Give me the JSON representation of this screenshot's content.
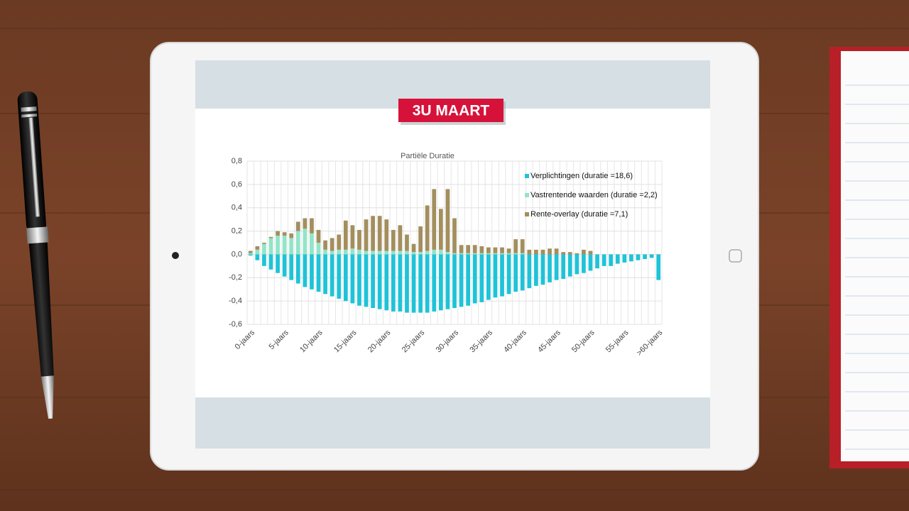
{
  "badge": {
    "text": "3U MAART"
  },
  "chart_data": {
    "type": "bar",
    "stacked": true,
    "title": "Partiële Duratie",
    "categories": [
      "0-jaars",
      null,
      null,
      null,
      null,
      "5-jaars",
      null,
      null,
      null,
      null,
      "10-jaars",
      null,
      null,
      null,
      null,
      "15-jaars",
      null,
      null,
      null,
      null,
      "20-jaars",
      null,
      null,
      null,
      null,
      "25-jaars",
      null,
      null,
      null,
      null,
      "30-jaars",
      null,
      null,
      null,
      null,
      "35-jaars",
      null,
      null,
      null,
      null,
      "40-jaars",
      null,
      null,
      null,
      null,
      "45-jaars",
      null,
      null,
      null,
      null,
      "50-jaars",
      null,
      null,
      null,
      null,
      "55-jaars",
      null,
      null,
      null,
      null,
      ">60-jaars"
    ],
    "series": [
      {
        "name": "Verplichtingen (duratie =18,6)",
        "color": "#1fc3d8",
        "values": [
          -0.01,
          -0.05,
          -0.1,
          -0.13,
          -0.16,
          -0.19,
          -0.22,
          -0.25,
          -0.28,
          -0.3,
          -0.32,
          -0.34,
          -0.36,
          -0.38,
          -0.4,
          -0.42,
          -0.44,
          -0.45,
          -0.46,
          -0.47,
          -0.48,
          -0.49,
          -0.49,
          -0.5,
          -0.5,
          -0.5,
          -0.5,
          -0.49,
          -0.48,
          -0.47,
          -0.46,
          -0.45,
          -0.44,
          -0.42,
          -0.41,
          -0.39,
          -0.37,
          -0.36,
          -0.34,
          -0.32,
          -0.31,
          -0.29,
          -0.27,
          -0.26,
          -0.24,
          -0.22,
          -0.21,
          -0.19,
          -0.17,
          -0.16,
          -0.14,
          -0.12,
          -0.1,
          -0.1,
          -0.08,
          -0.07,
          -0.06,
          -0.05,
          -0.04,
          -0.03,
          -0.22
        ]
      },
      {
        "name": "Vastrentende waarden (duratie =2,2)",
        "color": "#93e4c8",
        "values": [
          0.01,
          0.04,
          0.09,
          0.14,
          0.16,
          0.16,
          0.14,
          0.2,
          0.22,
          0.18,
          0.1,
          0.04,
          0.03,
          0.04,
          0.04,
          0.05,
          0.04,
          0.03,
          0.03,
          0.03,
          0.03,
          0.03,
          0.03,
          0.03,
          0.02,
          0.02,
          0.03,
          0.04,
          0.04,
          0.02,
          0.01,
          0.01,
          0.01,
          0.01,
          0.01,
          0.01,
          0.01,
          0.01,
          0.01,
          0.01,
          0.01,
          0,
          0,
          0,
          0,
          0,
          0,
          0,
          0,
          0,
          0,
          0,
          0,
          0,
          0,
          0,
          0,
          0,
          0,
          0,
          0
        ]
      },
      {
        "name": "Rente-overlay (duratie =7,1)",
        "color": "#a38f5e",
        "values": [
          0.02,
          0.03,
          0.01,
          0.01,
          0.04,
          0.03,
          0.04,
          0.08,
          0.09,
          0.13,
          0.11,
          0.08,
          0.11,
          0.13,
          0.25,
          0.2,
          0.17,
          0.27,
          0.3,
          0.3,
          0.27,
          0.18,
          0.22,
          0.14,
          0.07,
          0.22,
          0.39,
          0.52,
          0.35,
          0.54,
          0.3,
          0.07,
          0.07,
          0.07,
          0.06,
          0.05,
          0.05,
          0.05,
          0.04,
          0.12,
          0.12,
          0.04,
          0.04,
          0.04,
          0.05,
          0.05,
          0.02,
          0.02,
          0.01,
          0.04,
          0.03,
          0,
          0,
          0,
          0,
          0,
          0,
          0,
          0,
          0,
          0
        ]
      }
    ],
    "ylim": [
      -0.6,
      0.8
    ],
    "yticks": [
      {
        "value": -0.6,
        "label": "-0,6"
      },
      {
        "value": -0.4,
        "label": "-0,4"
      },
      {
        "value": -0.2,
        "label": "-0,2"
      },
      {
        "value": 0,
        "label": "0,0"
      },
      {
        "value": 0.2,
        "label": "0,2"
      },
      {
        "value": 0.4,
        "label": "0,4"
      },
      {
        "value": 0.6,
        "label": "0,6"
      },
      {
        "value": 0.8,
        "label": "0,8"
      }
    ],
    "grid": true,
    "legend": "top-right"
  }
}
